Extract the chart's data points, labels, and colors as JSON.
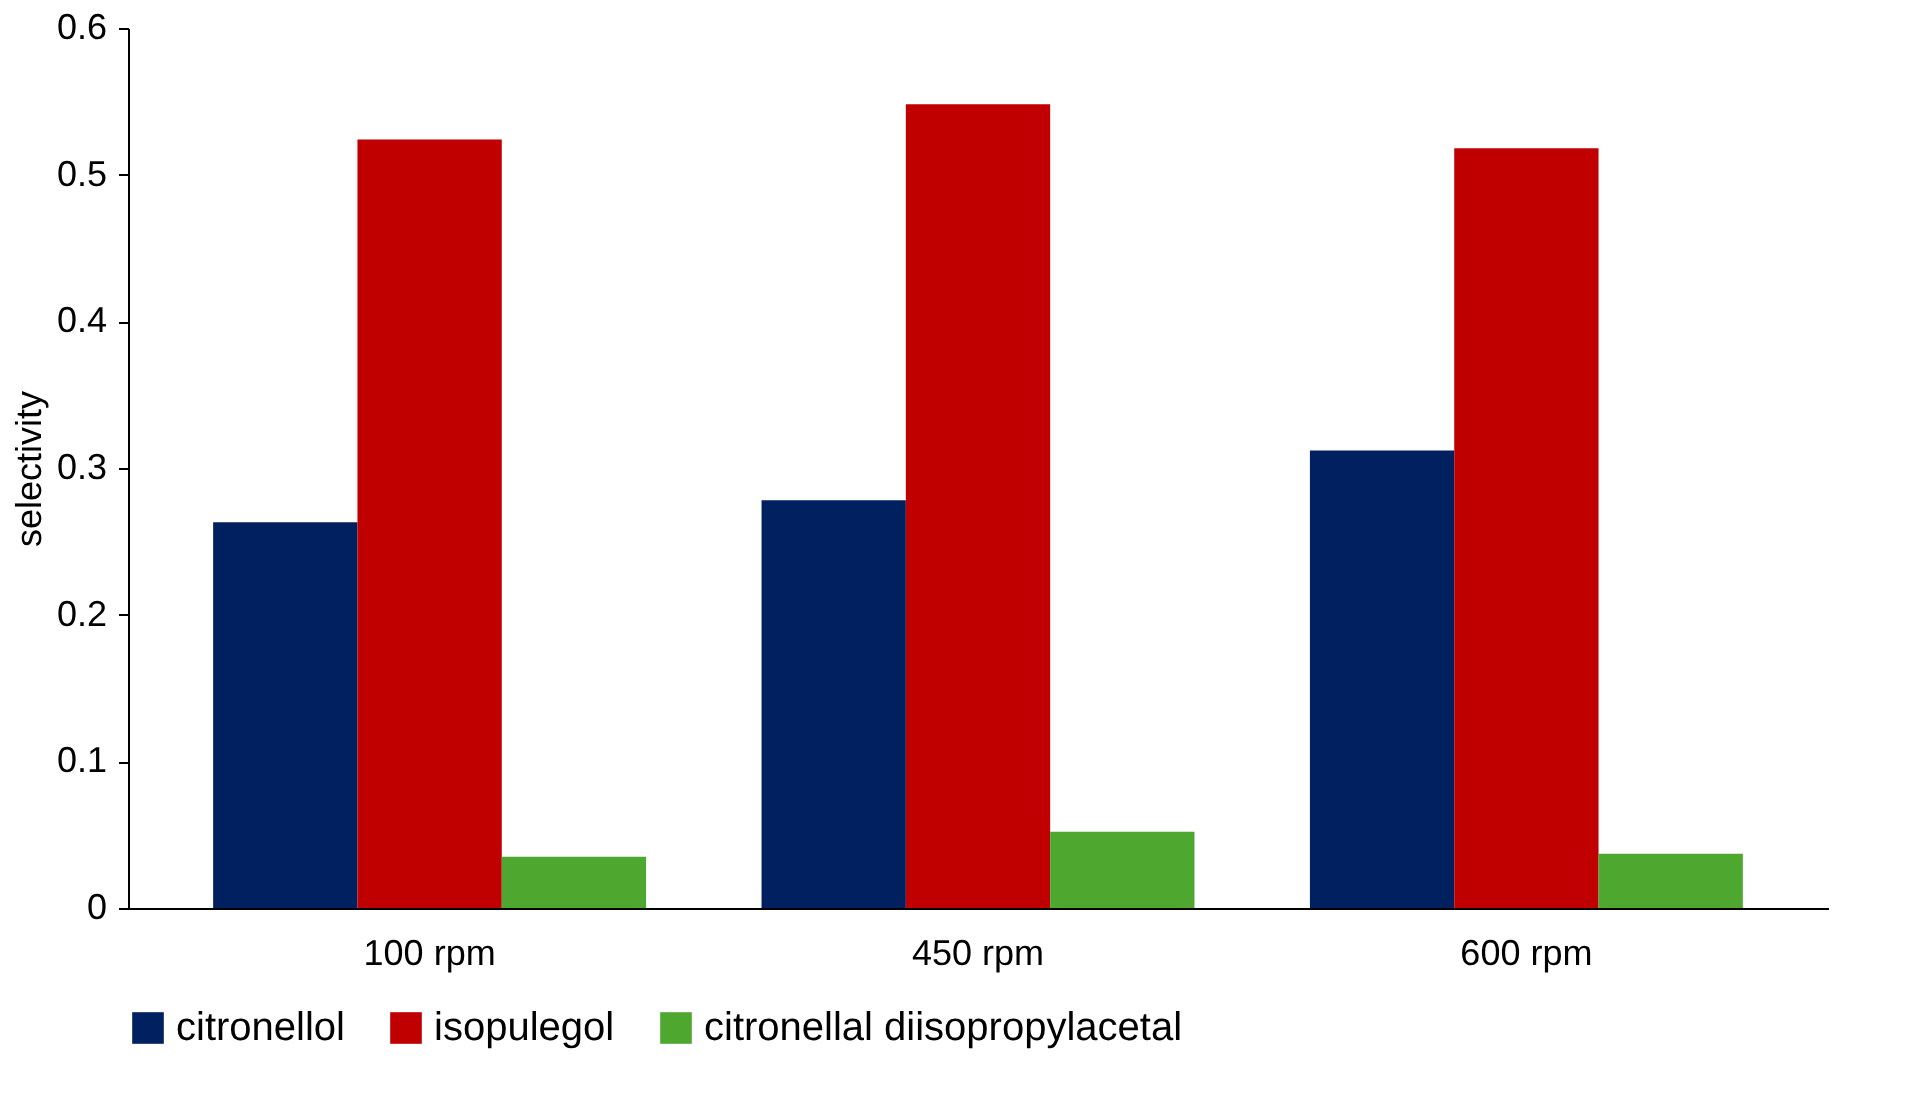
{
  "chart_data": {
    "type": "bar",
    "ylabel": "selectivity",
    "categories": [
      "100 rpm",
      "450 rpm",
      "600 rpm"
    ],
    "series": [
      {
        "name": "citronellol",
        "color": "#002060",
        "values": [
          0.263,
          0.278,
          0.312
        ]
      },
      {
        "name": "isopulegol",
        "color": "#c00000",
        "values": [
          0.524,
          0.548,
          0.518
        ]
      },
      {
        "name": "citronellal diisopropylacetal",
        "color": "#4ea72e",
        "values": [
          0.035,
          0.052,
          0.037
        ]
      }
    ],
    "ylim": [
      0,
      0.6
    ],
    "yticks": [
      0,
      0.1,
      0.2,
      0.3,
      0.4,
      0.5,
      0.6
    ],
    "grid": false,
    "legend": "bottom"
  }
}
